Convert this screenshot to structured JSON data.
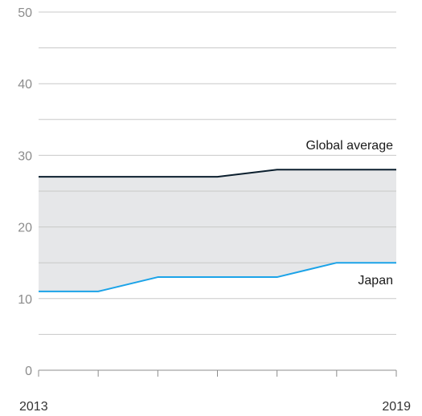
{
  "chart_data": {
    "type": "line",
    "title": "",
    "xlabel": "",
    "ylabel": "",
    "x": [
      2013,
      2014,
      2015,
      2016,
      2017,
      2018,
      2019
    ],
    "x_tick_labels": [
      "2013",
      "2019"
    ],
    "ylim": [
      0,
      50
    ],
    "y_ticks": [
      0,
      5,
      10,
      15,
      20,
      25,
      30,
      35,
      40,
      45,
      50
    ],
    "y_tick_labels": [
      "0",
      "10",
      "20",
      "30",
      "40",
      "50"
    ],
    "grid": true,
    "shaded_band_between_series": true,
    "colors": {
      "Global average": "#0b1f2e",
      "Japan": "#1ba3e8",
      "band": "#e6e7e9",
      "grid": "#c8c8c8",
      "axis": "#8c8c8c"
    },
    "series": [
      {
        "name": "Global average",
        "values": [
          27,
          27,
          27,
          27,
          28,
          28,
          28
        ]
      },
      {
        "name": "Japan",
        "values": [
          11,
          11,
          13,
          13,
          13,
          15,
          15
        ]
      }
    ]
  }
}
